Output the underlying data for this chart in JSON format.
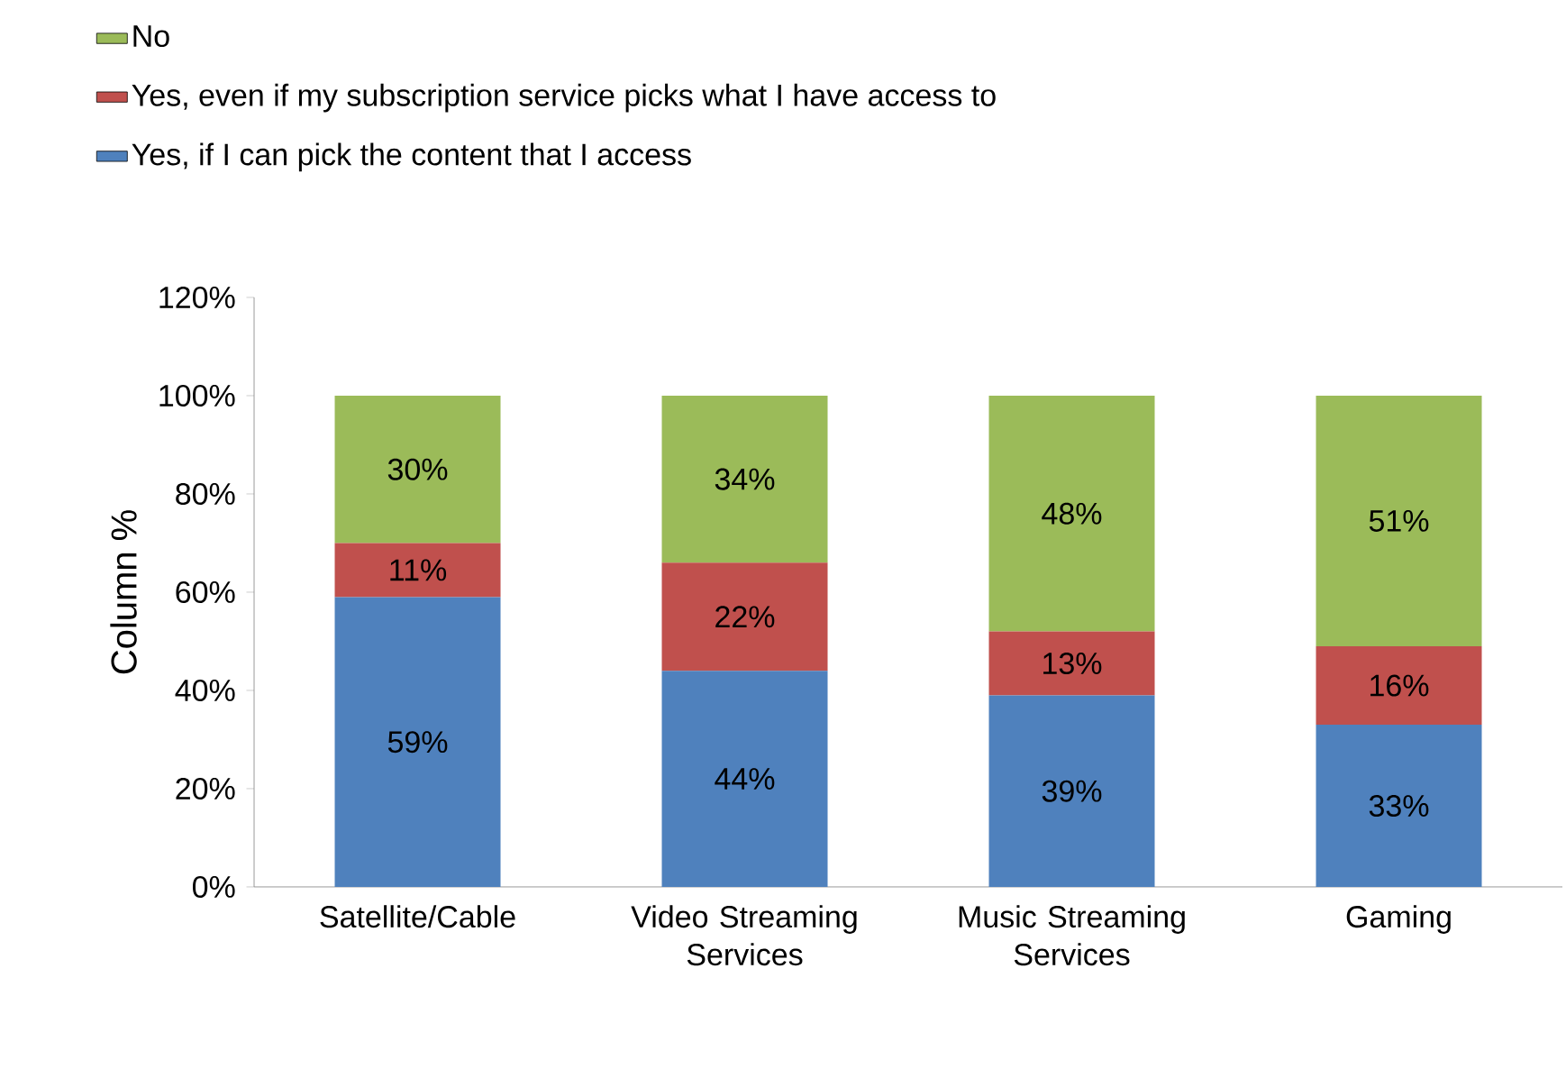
{
  "chart_data": {
    "type": "bar",
    "stacked": true,
    "ylabel": "Column %",
    "categories": [
      "Satellite/Cable",
      "Video Streaming Services",
      "Music Streaming Services",
      "Gaming"
    ],
    "series": [
      {
        "name": "Yes, if I can pick the content that I access",
        "color": "#4f81bd",
        "values": [
          59,
          44,
          39,
          33
        ],
        "value_labels": [
          "59%",
          "44%",
          "39%",
          "33%"
        ]
      },
      {
        "name": "Yes, even if my subscription service picks what I have access to",
        "color": "#c0504d",
        "values": [
          11,
          22,
          13,
          16
        ],
        "value_labels": [
          "11%",
          "22%",
          "13%",
          "16%"
        ]
      },
      {
        "name": "No",
        "color": "#9bbb59",
        "values": [
          30,
          34,
          48,
          51
        ],
        "value_labels": [
          "30%",
          "34%",
          "48%",
          "51%"
        ]
      }
    ],
    "ylim": [
      0,
      120
    ],
    "yticks": [
      {
        "value": 0,
        "label": "0%"
      },
      {
        "value": 20,
        "label": "20%"
      },
      {
        "value": 40,
        "label": "40%"
      },
      {
        "value": 60,
        "label": "60%"
      },
      {
        "value": 80,
        "label": "80%"
      },
      {
        "value": 100,
        "label": "100%"
      },
      {
        "value": 120,
        "label": "120%"
      }
    ],
    "legend": "top left"
  }
}
